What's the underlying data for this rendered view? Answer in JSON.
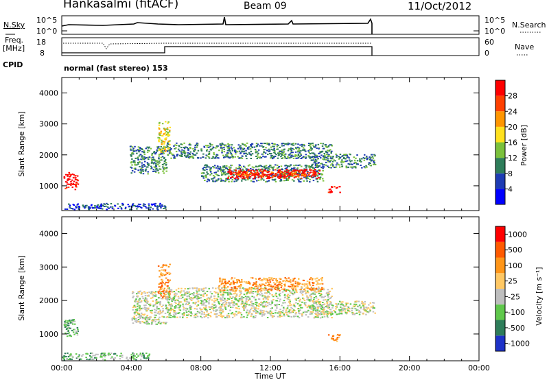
{
  "header": {
    "station": "Hankasalmi (fitACF)",
    "beam": "Beam 09",
    "date": "11/Oct/2012"
  },
  "top_panels": {
    "nsky_label": "N.Sky",
    "nsky_ticks": [
      "10^5",
      "10^0"
    ],
    "nsearch_label": "N.Search",
    "nsearch_ticks": [
      "10^5",
      "10^0"
    ],
    "freq_label": "Freq.",
    "freq_unit": "[MHz]",
    "freq_ticks": [
      "18",
      "8"
    ],
    "nave_label": "Nave",
    "nave_ticks": [
      "60",
      "0"
    ],
    "cpid_label": "CPID",
    "cpid_text": "normal (fast stereo) 153"
  },
  "chart_data": [
    {
      "type": "heatmap",
      "name": "power",
      "ylabel": "Slant Range [km]",
      "yticks": [
        "4000",
        "3000",
        "2000",
        "1000"
      ],
      "ylim": [
        200,
        4500
      ],
      "colorbar_label": "Power [dB]",
      "colorbar_ticks": [
        "28",
        "24",
        "20",
        "16",
        "12",
        "8",
        "4"
      ],
      "colorbar_colors": [
        "#0000ff",
        "#1e3cb4",
        "#2e7d5a",
        "#7bc13c",
        "#ffe11e",
        "#ff9600",
        "#ff4000",
        "#ff0000"
      ],
      "clusters": [
        {
          "t0": 0.1,
          "t1": 0.9,
          "r0": 900,
          "r1": 1450,
          "level": 7
        },
        {
          "t0": 3.9,
          "t1": 6.0,
          "r0": 1400,
          "r1": 2300,
          "level": 2
        },
        {
          "t0": 5.5,
          "t1": 6.2,
          "r0": 2100,
          "r1": 3100,
          "level": 4
        },
        {
          "t0": 6.0,
          "t1": 15.5,
          "r0": 1900,
          "r1": 2400,
          "level": 2
        },
        {
          "t0": 8.0,
          "t1": 15.0,
          "r0": 1150,
          "r1": 1700,
          "level": 2
        },
        {
          "t0": 9.5,
          "t1": 14.8,
          "r0": 1250,
          "r1": 1550,
          "level": 7
        },
        {
          "t0": 10.0,
          "t1": 14.0,
          "r0": 1300,
          "r1": 1500,
          "level": 6
        },
        {
          "t0": 14.3,
          "t1": 18.0,
          "r0": 1600,
          "r1": 2050,
          "level": 2
        },
        {
          "t0": 15.3,
          "t1": 16.0,
          "r0": 800,
          "r1": 1000,
          "level": 7
        },
        {
          "t0": 0.0,
          "t1": 6.0,
          "r0": 250,
          "r1": 450,
          "level": 1
        }
      ]
    },
    {
      "type": "heatmap",
      "name": "velocity",
      "ylabel": "Slant Range [km]",
      "yticks": [
        "4000",
        "3000",
        "2000",
        "1000"
      ],
      "ylim": [
        200,
        4500
      ],
      "xlabel": "Time UT",
      "xticks": [
        "00:00",
        "04:00",
        "08:00",
        "12:00",
        "16:00",
        "20:00",
        "00:00"
      ],
      "xlim": [
        0,
        24
      ],
      "colorbar_label": "Velocity [m s⁻¹]",
      "colorbar_ticks": [
        "1000",
        "500",
        "100",
        "25",
        "-25",
        "-100",
        "-500",
        "-1000"
      ],
      "colorbar_colors": [
        "#1e32c8",
        "#2e7d5a",
        "#5fc84b",
        "#bebebe",
        "#ffc864",
        "#ff9619",
        "#ff5a00",
        "#ff0000"
      ],
      "clusters": [
        {
          "t0": 0.1,
          "t1": 0.9,
          "r0": 900,
          "r1": 1450,
          "level": 2
        },
        {
          "t0": 4.0,
          "t1": 6.0,
          "r0": 1300,
          "r1": 2300,
          "level": 3
        },
        {
          "t0": 5.5,
          "t1": 6.2,
          "r0": 2100,
          "r1": 3100,
          "level": 5
        },
        {
          "t0": 6.0,
          "t1": 15.5,
          "r0": 1500,
          "r1": 2400,
          "level": 3
        },
        {
          "t0": 9.0,
          "t1": 15.0,
          "r0": 2300,
          "r1": 2700,
          "level": 5
        },
        {
          "t0": 14.3,
          "t1": 18.0,
          "r0": 1600,
          "r1": 2000,
          "level": 3
        },
        {
          "t0": 15.3,
          "t1": 16.0,
          "r0": 800,
          "r1": 1000,
          "level": 5
        },
        {
          "t0": 0.0,
          "t1": 5.0,
          "r0": 250,
          "r1": 450,
          "level": 2
        }
      ]
    }
  ]
}
